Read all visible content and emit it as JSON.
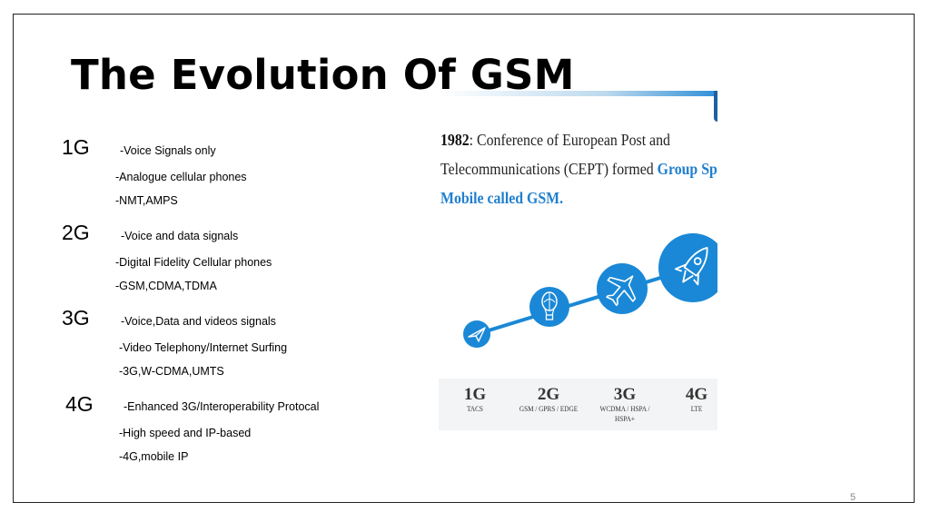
{
  "slide": {
    "title": "The Evolution Of GSM",
    "page_number": "5",
    "generations": [
      {
        "label": "1G",
        "items": [
          "-Voice Signals only",
          "-Analogue cellular phones",
          "-NMT,AMPS"
        ]
      },
      {
        "label": "2G",
        "items": [
          "-Voice and data signals",
          "-Digital Fidelity Cellular phones",
          "-GSM,CDMA,TDMA"
        ]
      },
      {
        "label": "3G",
        "items": [
          "-Voice,Data and videos signals",
          "-Video Telephony/Internet Surfing",
          "-3G,W-CDMA,UMTS"
        ]
      },
      {
        "label": "4G",
        "items": [
          "-Enhanced 3G/Interoperability Protocal",
          "-High speed and IP-based",
          "-4G,mobile IP"
        ]
      }
    ]
  },
  "figure": {
    "caption_year": "1982",
    "caption_line1": ": Conference of European Post and",
    "caption_line2a": "Telecommunications (CEPT) formed ",
    "caption_line2b": "Group Speciale",
    "caption_line3": "Mobile  called GSM.",
    "accent_color": "#1a88d6",
    "milestones": [
      {
        "gen": "1G",
        "sub": "TACS",
        "icon": "paper-plane-icon"
      },
      {
        "gen": "2G",
        "sub": "GSM / GPRS / EDGE",
        "icon": "hot-air-balloon-icon"
      },
      {
        "gen": "3G",
        "sub": "WCDMA / HSPA / HSPA+",
        "icon": "airplane-icon"
      },
      {
        "gen": "4G",
        "sub": "LTE",
        "icon": "rocket-icon"
      }
    ]
  }
}
